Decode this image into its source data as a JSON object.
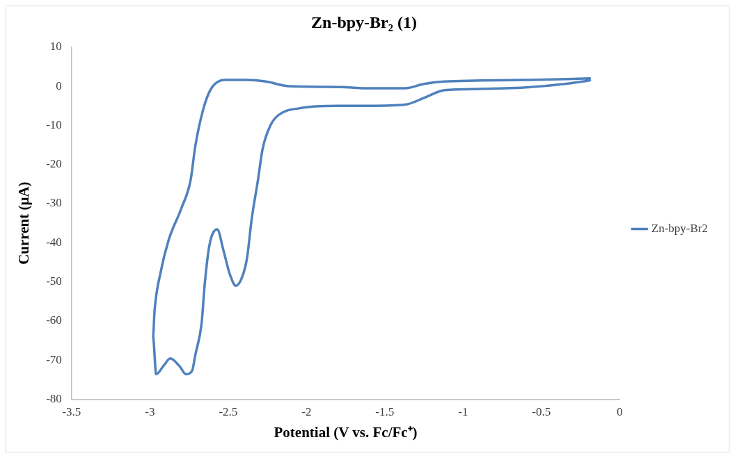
{
  "chart_data": {
    "type": "line",
    "title": "Zn-bpy-Br₂ (1)",
    "xlabel": "Potential (V vs. Fc/Fc⁺)",
    "ylabel": "Current (μA)",
    "xlim": [
      -3.5,
      0
    ],
    "xticks": [
      -3.5,
      -3,
      -2.5,
      -2,
      -1.5,
      -1,
      -0.5,
      0
    ],
    "ylim": [
      -80,
      10
    ],
    "yticks": [
      -80,
      -70,
      -60,
      -50,
      -40,
      -30,
      -20,
      -10,
      0,
      10
    ],
    "grid": false,
    "legend": "right",
    "marker": "none",
    "line_style": "solid",
    "series": [
      {
        "name": "Zn-bpy-Br2",
        "color": "#4f81bd",
        "x": [
          -0.19,
          -0.35,
          -0.6,
          -0.9,
          -1.12,
          -1.25,
          -1.37,
          -1.6,
          -1.8,
          -2.04,
          -2.18,
          -2.23,
          -2.28,
          -2.31,
          -2.35,
          -2.38,
          -2.41,
          -2.45,
          -2.49,
          -2.53,
          -2.57,
          -2.62,
          -2.65,
          -2.67,
          -2.71,
          -2.73,
          -2.77,
          -2.81,
          -2.87,
          -2.91,
          -2.96,
          -2.98,
          -2.97,
          -2.93,
          -2.88,
          -2.8,
          -2.74,
          -2.71,
          -2.66,
          -2.61,
          -2.52,
          -2.38,
          -2.26,
          -2.11,
          -1.78,
          -1.63,
          -1.37,
          -1.25,
          -1.12,
          -0.6,
          -0.19
        ],
        "values": [
          1.5,
          0.6,
          -0.3,
          -0.7,
          -1.0,
          -3,
          -4.7,
          -5,
          -5,
          -5.6,
          -7.4,
          -10,
          -16,
          -24,
          -34,
          -44,
          -48.7,
          -51,
          -48,
          -42,
          -36.6,
          -40.7,
          -50.7,
          -60.7,
          -68.7,
          -72.7,
          -73.6,
          -71.6,
          -69.6,
          -71.3,
          -73.6,
          -64,
          -57.3,
          -47.3,
          -39.3,
          -31.3,
          -24,
          -15.3,
          -6,
          -0.7,
          1.6,
          1.6,
          1.2,
          0,
          -0.2,
          -0.5,
          -0.5,
          0.6,
          1.2,
          1.6,
          2
        ]
      }
    ]
  }
}
